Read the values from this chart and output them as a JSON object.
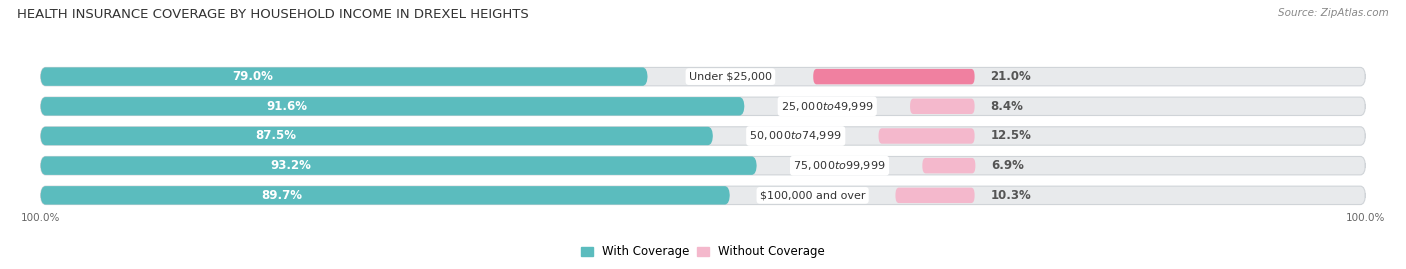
{
  "title": "HEALTH INSURANCE COVERAGE BY HOUSEHOLD INCOME IN DREXEL HEIGHTS",
  "source": "Source: ZipAtlas.com",
  "categories": [
    "Under $25,000",
    "$25,000 to $49,999",
    "$50,000 to $74,999",
    "$75,000 to $99,999",
    "$100,000 and over"
  ],
  "with_coverage": [
    79.0,
    91.6,
    87.5,
    93.2,
    89.7
  ],
  "without_coverage": [
    21.0,
    8.4,
    12.5,
    6.9,
    10.3
  ],
  "coverage_color": "#5BBCBE",
  "no_coverage_color": "#F080A0",
  "no_coverage_color_light": "#F4B8CC",
  "background_color": "#FFFFFF",
  "bar_bg_color": "#E8EAEC",
  "bar_outline_color": "#D0D4D8",
  "title_fontsize": 9.5,
  "label_fontsize": 8.5,
  "tick_fontsize": 7.5,
  "source_fontsize": 7.5,
  "x_left_label": "100.0%",
  "x_right_label": "100.0%",
  "legend_coverage": "With Coverage",
  "legend_no_coverage": "Without Coverage"
}
